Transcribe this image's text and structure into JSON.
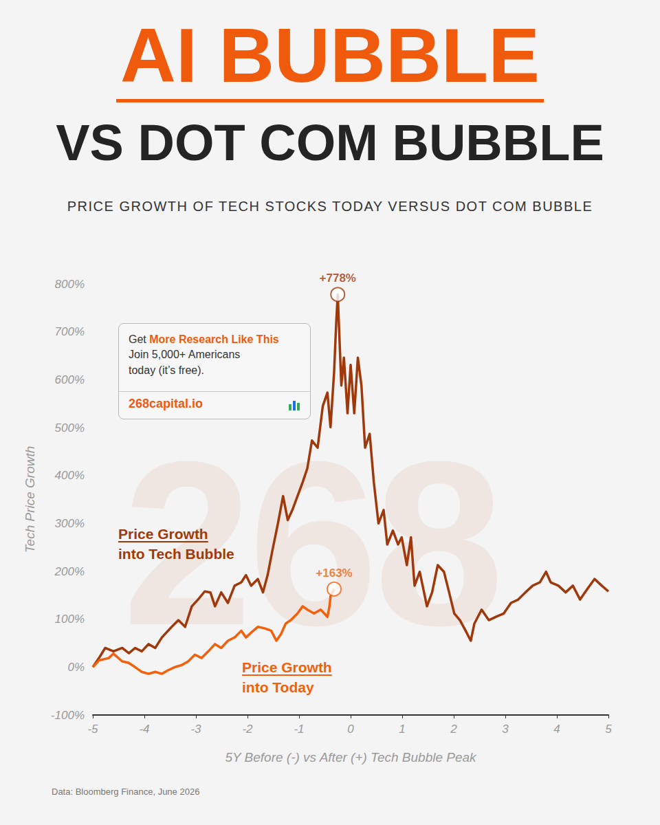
{
  "header": {
    "title": "AI BUBBLE",
    "headline": "VS DOT COM BUBBLE",
    "subtitle": "PRICE GROWTH OF TECH STOCKS TODAY VERSUS DOT COM BUBBLE"
  },
  "promo": {
    "intro": "Get",
    "highlight": "More Research Like This",
    "lines": [
      "Join 5,000+ Americans",
      "today (it’s free)."
    ],
    "link": "268capital.io"
  },
  "watermark": "268",
  "source": "Data: Bloomberg Finance, June 2026",
  "chart_data": {
    "type": "line",
    "x_label": "5Y Before (-) vs After (+) Tech Bubble Peak",
    "y_label": "Tech Price Growth",
    "xlim": [
      -5,
      5
    ],
    "xticks": [
      -5,
      -4,
      -3,
      -2,
      -1,
      0,
      1,
      2,
      3,
      4,
      5
    ],
    "ylim": [
      -100,
      800
    ],
    "yticks": [
      {
        "value": -100,
        "label": "-100%"
      },
      {
        "value": 0,
        "label": "0%"
      },
      {
        "value": 100,
        "label": "100%"
      },
      {
        "value": 200,
        "label": "200%"
      },
      {
        "value": 300,
        "label": "300%"
      },
      {
        "value": 400,
        "label": "400%"
      },
      {
        "value": 500,
        "label": "500%"
      },
      {
        "value": 600,
        "label": "600%"
      },
      {
        "value": 700,
        "label": "700%"
      },
      {
        "value": 800,
        "label": "800%"
      }
    ],
    "grid": false,
    "marker": "none",
    "series": [
      {
        "name": "Price Growth into Tech Bubble",
        "color": "#9f390c",
        "x": [
          -5.0,
          -4.88,
          -4.76,
          -4.6,
          -4.43,
          -4.3,
          -4.18,
          -4.05,
          -3.92,
          -3.79,
          -3.66,
          -3.47,
          -3.34,
          -3.21,
          -3.08,
          -2.96,
          -2.83,
          -2.72,
          -2.63,
          -2.51,
          -2.38,
          -2.25,
          -2.12,
          -2.03,
          -1.93,
          -1.8,
          -1.7,
          -1.61,
          -1.52,
          -1.41,
          -1.31,
          -1.22,
          -1.13,
          -1.03,
          -0.93,
          -0.84,
          -0.75,
          -0.64,
          -0.54,
          -0.45,
          -0.39,
          -0.32,
          -0.28,
          -0.25,
          -0.18,
          -0.13,
          -0.06,
          0.0,
          0.07,
          0.14,
          0.21,
          0.28,
          0.37,
          0.45,
          0.54,
          0.64,
          0.71,
          0.82,
          0.92,
          0.99,
          1.09,
          1.17,
          1.24,
          1.34,
          1.48,
          1.58,
          1.69,
          1.81,
          1.91,
          2.01,
          2.12,
          2.23,
          2.33,
          2.4,
          2.54,
          2.68,
          2.82,
          2.97,
          3.11,
          3.25,
          3.39,
          3.53,
          3.67,
          3.79,
          3.88,
          4.03,
          4.17,
          4.31,
          4.45,
          4.59,
          4.73,
          4.87,
          5.0
        ],
        "values": [
          0,
          19,
          40,
          33,
          40,
          29,
          40,
          33,
          48,
          40,
          62,
          84,
          98,
          84,
          127,
          141,
          158,
          156,
          127,
          156,
          134,
          170,
          177,
          192,
          170,
          184,
          156,
          192,
          242,
          300,
          357,
          307,
          328,
          357,
          386,
          415,
          473,
          458,
          545,
          573,
          501,
          617,
          718,
          778,
          588,
          646,
          530,
          631,
          530,
          646,
          588,
          458,
          487,
          386,
          300,
          328,
          256,
          285,
          256,
          271,
          213,
          271,
          170,
          199,
          127,
          156,
          213,
          199,
          156,
          112,
          98,
          76,
          55,
          91,
          120,
          98,
          105,
          112,
          134,
          141,
          156,
          170,
          177,
          199,
          177,
          170,
          156,
          170,
          141,
          163,
          184,
          170,
          158
        ]
      },
      {
        "name": "Price Growth into Today",
        "color": "#f2600c",
        "x": [
          -5.0,
          -4.88,
          -4.69,
          -4.6,
          -4.43,
          -4.31,
          -4.18,
          -4.05,
          -3.92,
          -3.79,
          -3.66,
          -3.53,
          -3.41,
          -3.28,
          -3.15,
          -3.02,
          -2.89,
          -2.76,
          -2.63,
          -2.51,
          -2.38,
          -2.25,
          -2.12,
          -2.03,
          -1.93,
          -1.8,
          -1.67,
          -1.54,
          -1.44,
          -1.35,
          -1.26,
          -1.16,
          -1.03,
          -0.93,
          -0.84,
          -0.71,
          -0.58,
          -0.45,
          -0.41,
          -0.39,
          -0.32
        ],
        "values": [
          0,
          14,
          19,
          28,
          12,
          9,
          0,
          -10,
          -14,
          -10,
          -14,
          -6,
          0,
          4,
          12,
          26,
          19,
          33,
          48,
          40,
          55,
          62,
          76,
          62,
          72,
          84,
          81,
          76,
          55,
          69,
          91,
          98,
          112,
          127,
          120,
          112,
          120,
          105,
          127,
          148,
          163
        ]
      }
    ],
    "annotations": [
      {
        "x": -0.25,
        "y": 778,
        "text": "+778%",
        "color": "#9f390c"
      },
      {
        "x": -0.32,
        "y": 163,
        "text": "+163%",
        "color": "#f2600c"
      }
    ]
  }
}
